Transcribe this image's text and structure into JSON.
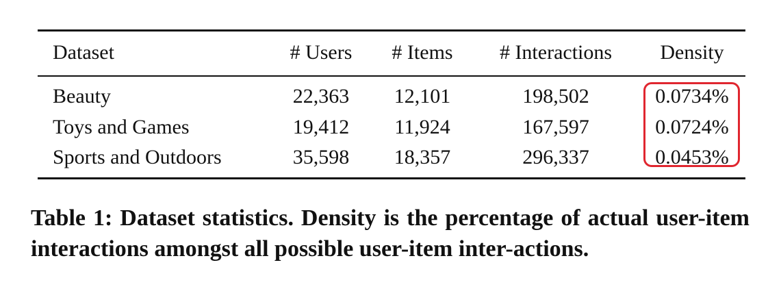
{
  "table": {
    "headers": [
      "Dataset",
      "# Users",
      "# Items",
      "# Interactions",
      "Density"
    ],
    "rows": [
      {
        "dataset": "Beauty",
        "users": "22,363",
        "items": "12,101",
        "interactions": "198,502",
        "density": "0.0734%"
      },
      {
        "dataset": "Toys and Games",
        "users": "19,412",
        "items": "11,924",
        "interactions": "167,597",
        "density": "0.0724%"
      },
      {
        "dataset": "Sports and Outdoors",
        "users": "35,598",
        "items": "18,357",
        "interactions": "296,337",
        "density": "0.0453%"
      }
    ],
    "highlight_color": "#e0262f"
  },
  "caption": {
    "label": "Table 1:",
    "text": "Dataset statistics. Density is the percentage of actual user-item interactions amongst all possible user-item inter-actions."
  }
}
